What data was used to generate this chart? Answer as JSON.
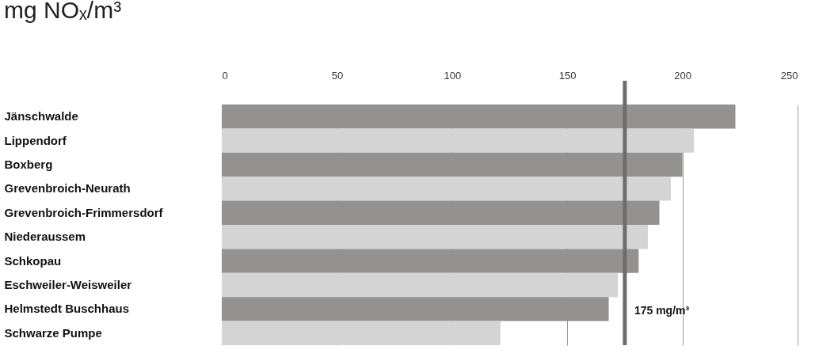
{
  "chart_data": {
    "type": "bar",
    "orientation": "horizontal",
    "title": "mg NOₓ/m³",
    "categories": [
      "Jänschwalde",
      "Lippendorf",
      "Boxberg",
      "Grevenbroich-Neurath",
      "Grevenbroich-Frimmersdorf",
      "Niederaussem",
      "Schkopau",
      "Eschweiler-Weisweiler",
      "Helmstedt Buschhaus",
      "Schwarze Pumpe"
    ],
    "values": [
      223,
      205,
      200,
      195,
      190,
      185,
      181,
      172,
      168,
      121
    ],
    "colors": [
      "#939291",
      "#d4d4d4",
      "#939291",
      "#d4d4d4",
      "#939291",
      "#d4d4d4",
      "#939291",
      "#d4d4d4",
      "#939291",
      "#d4d4d4"
    ],
    "xlim": [
      0,
      250
    ],
    "xticks": [
      0,
      50,
      100,
      150,
      200,
      250
    ],
    "grid": true,
    "ref_lines": [
      {
        "axis": "x",
        "value": 175,
        "label": "175 mg/m³",
        "color": "#6d6d6d"
      }
    ]
  }
}
